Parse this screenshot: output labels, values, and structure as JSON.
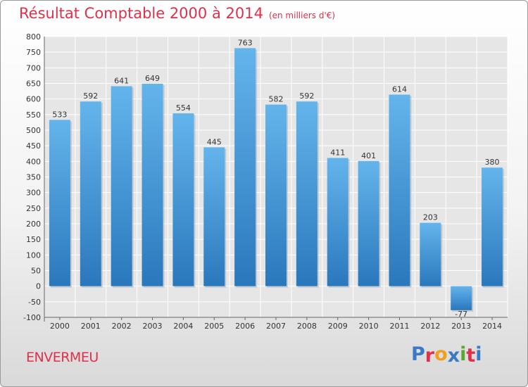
{
  "header": {
    "title": "Résultat Comptable 2000 à 2014",
    "subtitle": "(en milliers d'€)"
  },
  "footer": {
    "commune": "ENVERMEU",
    "brand_letters": [
      "P",
      "r",
      "o",
      "x",
      "i",
      "t",
      "i"
    ],
    "brand_colors": [
      "#3a79c6",
      "#e0304a",
      "#f0a020",
      "#3a79c6",
      "#5aa832",
      "#e0304a",
      "#3a79c6"
    ]
  },
  "chart_data": {
    "type": "bar",
    "title": "Résultat Comptable 2000 à 2014",
    "subtitle": "(en milliers d'€)",
    "xlabel": "",
    "ylabel": "",
    "categories": [
      "2000",
      "2001",
      "2002",
      "2003",
      "2004",
      "2005",
      "2006",
      "2007",
      "2008",
      "2009",
      "2010",
      "2011",
      "2012",
      "2013",
      "2014"
    ],
    "values": [
      533,
      592,
      641,
      649,
      554,
      445,
      763,
      582,
      592,
      411,
      401,
      614,
      203,
      -77,
      380
    ],
    "ylim": [
      -100,
      800
    ],
    "yticks": [
      -100,
      -50,
      0,
      50,
      100,
      150,
      200,
      250,
      300,
      350,
      400,
      450,
      500,
      550,
      600,
      650,
      700,
      750,
      800
    ],
    "grid": true,
    "bar_color_top": "#64b4ec",
    "bar_color_bottom": "#2a78bc"
  }
}
